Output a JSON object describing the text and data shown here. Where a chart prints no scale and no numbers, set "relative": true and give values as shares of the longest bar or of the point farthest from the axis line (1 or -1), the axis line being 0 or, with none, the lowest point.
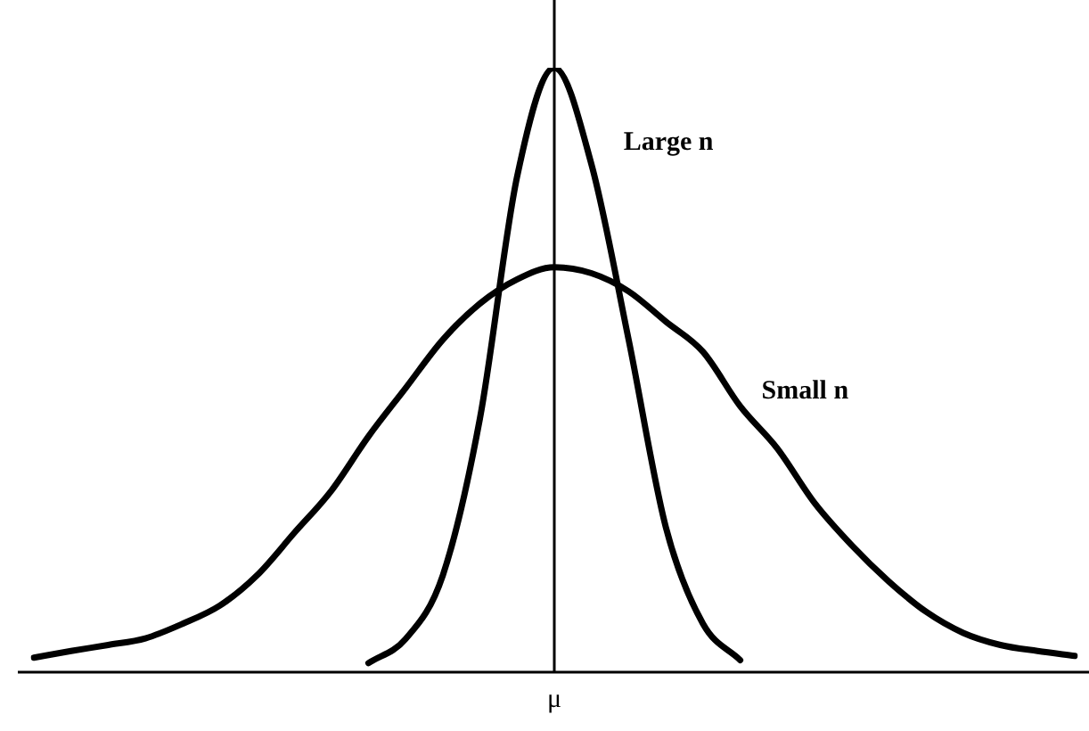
{
  "chart_data": {
    "type": "line",
    "relative": true,
    "tick_labels": false,
    "legend": false,
    "grid": false,
    "marker": "none",
    "line_style": "solid",
    "categories": [
      null,
      null,
      null,
      null,
      null,
      null,
      null,
      null,
      null,
      null,
      null,
      null,
      null,
      null,
      null,
      null,
      null,
      null,
      null,
      null,
      null,
      null,
      null,
      null,
      null,
      null,
      null,
      null,
      null
    ],
    "series": [
      {
        "name": "Large n",
        "color": "#000000",
        "values": [
          null,
          null,
          null,
          null,
          null,
          null,
          null,
          null,
          null,
          0.015,
          0.055,
          0.16,
          0.42,
          0.82,
          1,
          0.84,
          0.55,
          0.24,
          0.08,
          0.02,
          null,
          null,
          null,
          null,
          null,
          null,
          null,
          null,
          null
        ]
      },
      {
        "name": "Small n",
        "color": "#000000",
        "values": [
          0.024,
          0.035,
          0.045,
          0.056,
          0.08,
          0.11,
          0.16,
          0.23,
          0.3,
          0.39,
          0.47,
          0.55,
          0.61,
          0.65,
          0.67,
          0.66,
          0.63,
          0.58,
          0.53,
          0.44,
          0.37,
          0.28,
          0.21,
          0.15,
          0.1,
          0.065,
          0.045,
          0.035,
          0.027
        ]
      }
    ],
    "ref_lines": [
      {
        "axis": "x",
        "value": "μ",
        "color": "#000000"
      }
    ]
  }
}
